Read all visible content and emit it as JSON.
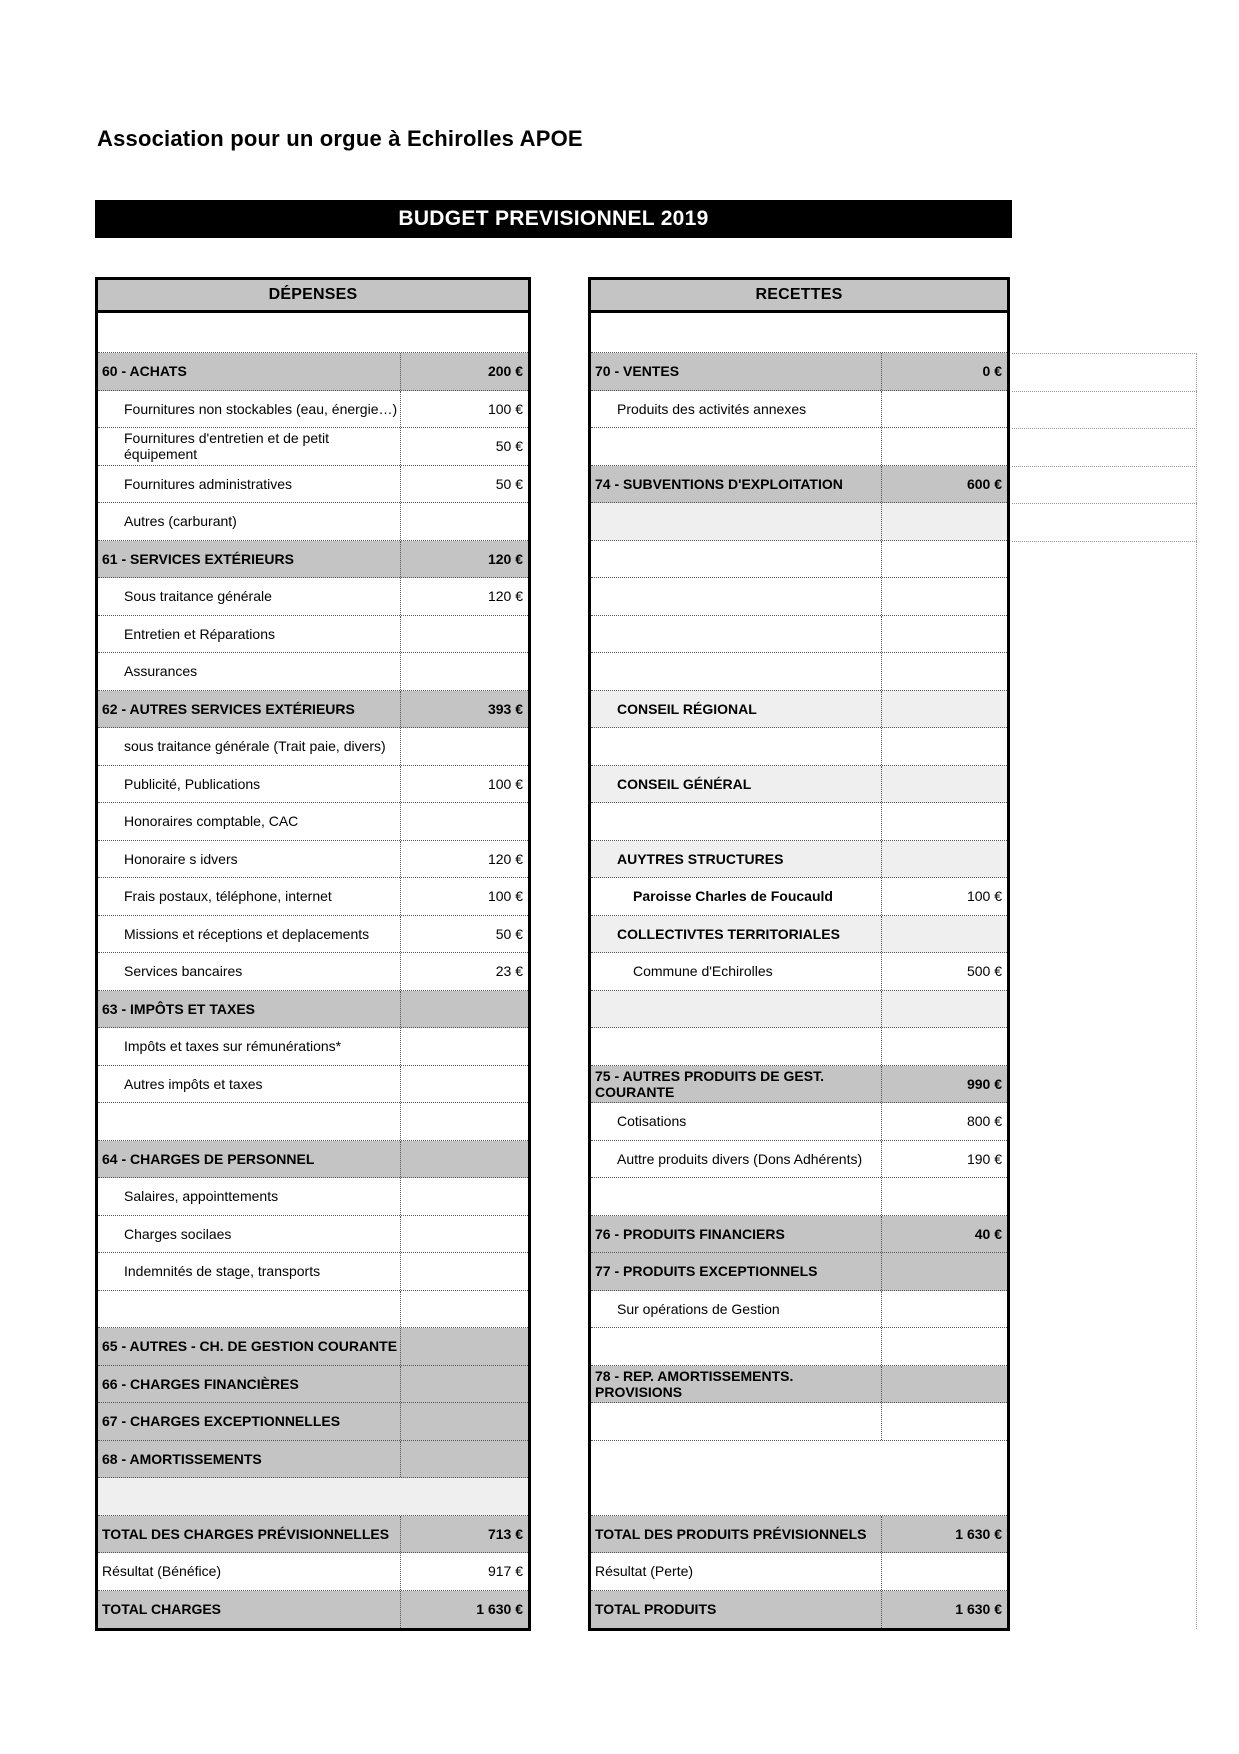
{
  "page": {
    "title": "Association pour un orgue à Echirolles APOE",
    "banner": "BUDGET PREVISIONNEL 2019"
  },
  "colors": {
    "section_bg": "#c4c4c4",
    "subsection_bg": "#efefef",
    "banner_bg": "#000000",
    "banner_fg": "#ffffff"
  },
  "depenses": {
    "header": "DÉPENSES",
    "rows": [
      {
        "label": "60 - ACHATS",
        "value": "200 €",
        "type": "section",
        "indent": 0
      },
      {
        "label": "Fournitures non stockables (eau, énergie…)",
        "value": "100 €",
        "type": "item",
        "indent": 1
      },
      {
        "label": "Fournitures d'entretien et de petit équipement",
        "value": "50 €",
        "type": "item",
        "indent": 1
      },
      {
        "label": "Fournitures administratives",
        "value": "50 €",
        "type": "item",
        "indent": 1
      },
      {
        "label": "Autres (carburant)",
        "value": "",
        "type": "item",
        "indent": 1
      },
      {
        "label": "61 - SERVICES EXTÉRIEURS",
        "value": "120 €",
        "type": "section",
        "indent": 0
      },
      {
        "label": "Sous traitance générale",
        "value": "120 €",
        "type": "item",
        "indent": 1
      },
      {
        "label": "Entretien et Réparations",
        "value": "",
        "type": "item",
        "indent": 1
      },
      {
        "label": "Assurances",
        "value": "",
        "type": "item",
        "indent": 1
      },
      {
        "label": "62 - AUTRES SERVICES EXTÉRIEURS",
        "value": "393 €",
        "type": "section",
        "indent": 0
      },
      {
        "label": "sous traitance générale (Trait paie, divers)",
        "value": "",
        "type": "item",
        "indent": 1
      },
      {
        "label": "Publicité, Publications",
        "value": "100 €",
        "type": "item",
        "indent": 1
      },
      {
        "label": "Honoraires comptable, CAC",
        "value": "",
        "type": "item",
        "indent": 1
      },
      {
        "label": "Honoraire s idvers",
        "value": "120 €",
        "type": "item",
        "indent": 1
      },
      {
        "label": "Frais postaux, téléphone, internet",
        "value": "100 €",
        "type": "item",
        "indent": 1
      },
      {
        "label": "Missions et réceptions et deplacements",
        "value": "50 €",
        "type": "item",
        "indent": 1
      },
      {
        "label": "Services bancaires",
        "value": "23 €",
        "type": "item",
        "indent": 1
      },
      {
        "label": "63 - IMPÔTS ET TAXES",
        "value": "",
        "type": "section",
        "indent": 0
      },
      {
        "label": "Impôts et taxes sur rémunérations*",
        "value": "",
        "type": "item",
        "indent": 1
      },
      {
        "label": "Autres impôts et taxes",
        "value": "",
        "type": "item",
        "indent": 1
      },
      {
        "label": "",
        "value": "",
        "type": "empty",
        "indent": 0
      },
      {
        "label": "64 - CHARGES DE PERSONNEL",
        "value": "",
        "type": "section",
        "indent": 0
      },
      {
        "label": "Salaires, appointtements",
        "value": "",
        "type": "item",
        "indent": 1
      },
      {
        "label": "Charges socilaes",
        "value": "",
        "type": "item",
        "indent": 1
      },
      {
        "label": "Indemnités de stage, transports",
        "value": "",
        "type": "item",
        "indent": 1
      },
      {
        "label": "",
        "value": "",
        "type": "empty",
        "indent": 0
      },
      {
        "label": "65 - AUTRES - CH. DE GESTION COURANTE",
        "value": "",
        "type": "section",
        "indent": 0
      },
      {
        "label": "66 - CHARGES FINANCIÈRES",
        "value": "",
        "type": "section",
        "indent": 0
      },
      {
        "label": "67 - CHARGES EXCEPTIONNELLES",
        "value": "",
        "type": "section",
        "indent": 0
      },
      {
        "label": "68 - AMORTISSEMENTS",
        "value": "",
        "type": "section",
        "indent": 0
      },
      {
        "label": "",
        "value": "",
        "type": "empty_light",
        "indent": 0,
        "no_divider": true
      },
      {
        "label": "TOTAL DES CHARGES PRÉVISIONNELLES",
        "value": "713 €",
        "type": "total",
        "indent": 0
      },
      {
        "label": "Résultat (Bénéfice)",
        "value": "917 €",
        "type": "result",
        "indent": 0
      },
      {
        "label": "TOTAL CHARGES",
        "value": "1 630 €",
        "type": "total",
        "indent": 0
      }
    ]
  },
  "recettes": {
    "header": "RECETTES",
    "rows": [
      {
        "label": "70 - VENTES",
        "value": "0 €",
        "type": "section",
        "indent": 0
      },
      {
        "label": "Produits des activités annexes",
        "value": "",
        "type": "item",
        "indent": 1
      },
      {
        "label": "",
        "value": "",
        "type": "empty",
        "indent": 0
      },
      {
        "label": "74 - SUBVENTIONS D'EXPLOITATION",
        "value": "600 €",
        "type": "section",
        "indent": 0
      },
      {
        "label": "",
        "value": "",
        "type": "empty_light",
        "indent": 0
      },
      {
        "label": "",
        "value": "",
        "type": "empty",
        "indent": 0
      },
      {
        "label": "",
        "value": "",
        "type": "empty",
        "indent": 0
      },
      {
        "label": "",
        "value": "",
        "type": "empty",
        "indent": 0
      },
      {
        "label": "",
        "value": "",
        "type": "empty",
        "indent": 0
      },
      {
        "label": "CONSEIL RÉGIONAL",
        "value": "",
        "type": "sub",
        "indent": 1
      },
      {
        "label": "",
        "value": "",
        "type": "empty",
        "indent": 0
      },
      {
        "label": "CONSEIL GÉNÉRAL",
        "value": "",
        "type": "sub",
        "indent": 1
      },
      {
        "label": "",
        "value": "",
        "type": "empty",
        "indent": 0
      },
      {
        "label": "AUYTRES STRUCTURES",
        "value": "",
        "type": "sub",
        "indent": 1
      },
      {
        "label": "Paroisse Charles de Foucauld",
        "value": "100 €",
        "type": "item_bold",
        "indent": 2
      },
      {
        "label": "COLLECTIVTES TERRITORIALES",
        "value": "",
        "type": "sub",
        "indent": 1
      },
      {
        "label": "Commune d'Echirolles",
        "value": "500 €",
        "type": "item",
        "indent": 2
      },
      {
        "label": "",
        "value": "",
        "type": "empty_light",
        "indent": 0
      },
      {
        "label": "",
        "value": "",
        "type": "empty",
        "indent": 0
      },
      {
        "label": "75 - AUTRES PRODUITS DE GEST. COURANTE",
        "value": "990 €",
        "type": "section",
        "indent": 0
      },
      {
        "label": "Cotisations",
        "value": "800 €",
        "type": "item",
        "indent": 1
      },
      {
        "label": "Auttre produits divers (Dons Adhérents)",
        "value": "190 €",
        "type": "item",
        "indent": 1
      },
      {
        "label": "",
        "value": "",
        "type": "empty",
        "indent": 0
      },
      {
        "label": "76 - PRODUITS FINANCIERS",
        "value": "40 €",
        "type": "section",
        "indent": 0
      },
      {
        "label": "77 - PRODUITS EXCEPTIONNELS",
        "value": "",
        "type": "section",
        "indent": 0
      },
      {
        "label": "Sur opérations de Gestion",
        "value": "",
        "type": "item",
        "indent": 1
      },
      {
        "label": "",
        "value": "",
        "type": "empty",
        "indent": 0
      },
      {
        "label": "78 - REP. AMORTISSEMENTS. PROVISIONS",
        "value": "",
        "type": "section",
        "indent": 0
      },
      {
        "label": "",
        "value": "",
        "type": "empty",
        "indent": 0
      },
      {
        "label": "",
        "value": "",
        "type": "empty",
        "indent": 0,
        "no_divider": true,
        "no_border": true
      },
      {
        "label": "",
        "value": "",
        "type": "empty",
        "indent": 0,
        "no_divider": true
      },
      {
        "label": "TOTAL DES PRODUITS PRÉVISIONNELS",
        "value": "1 630 €",
        "type": "total",
        "indent": 0
      },
      {
        "label": "Résultat (Perte)",
        "value": "",
        "type": "result",
        "indent": 0
      },
      {
        "label": "TOTAL PRODUITS",
        "value": "1 630 €",
        "type": "total",
        "indent": 0
      }
    ]
  }
}
